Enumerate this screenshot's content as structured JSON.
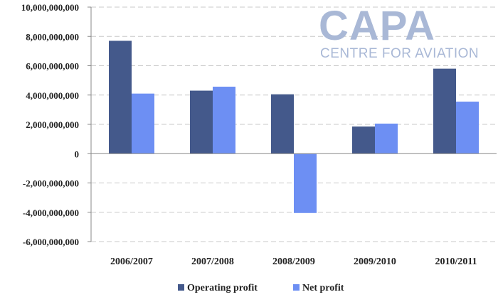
{
  "logo": {
    "main": "CAPA",
    "sub": "CENTRE FOR AVIATION"
  },
  "chart_data": {
    "type": "bar",
    "categories": [
      "2006/2007",
      "2007/2008",
      "2008/2009",
      "2009/2010",
      "2010/2011"
    ],
    "series": [
      {
        "name": "Operating profit",
        "color": "#44598b",
        "values": [
          7700000000,
          4300000000,
          4050000000,
          1850000000,
          5800000000
        ]
      },
      {
        "name": "Net profit",
        "color": "#6d8ff3",
        "values": [
          4100000000,
          4570000000,
          -4050000000,
          2050000000,
          3550000000
        ]
      }
    ],
    "ylim": [
      -6000000000,
      10000000000
    ],
    "ytick_step": 2000000000,
    "yticks": [
      "10,000,000,000",
      "8,000,000,000",
      "6,000,000,000",
      "4,000,000,000",
      "2,000,000,000",
      "0",
      "-2,000,000,000",
      "-4,000,000,000",
      "-6,000,000,000"
    ],
    "grid": true,
    "legend": "bottom"
  }
}
